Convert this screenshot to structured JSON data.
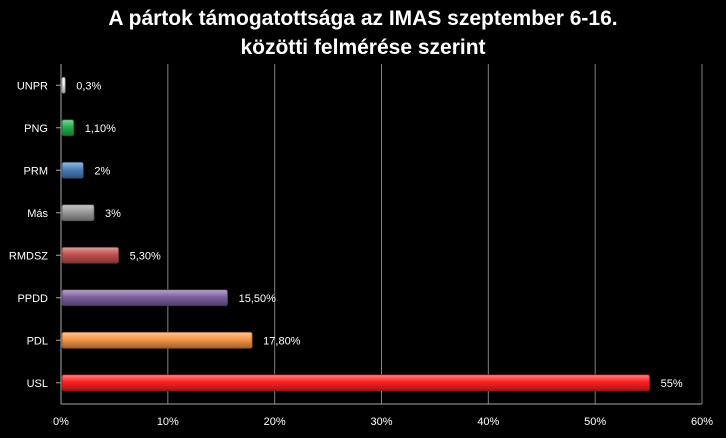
{
  "chart_data": {
    "type": "bar",
    "orientation": "horizontal",
    "title_lines": [
      "A pártok támogatottsága az IMAS szeptember 6-16.",
      "közötti felmérése szerint"
    ],
    "categories": [
      "UNPR",
      "PNG",
      "PRM",
      "Más",
      "RMDSZ",
      "PPDD",
      "PDL",
      "USL"
    ],
    "values": [
      0.3,
      1.1,
      2,
      3,
      5.3,
      15.5,
      17.8,
      55
    ],
    "value_labels": [
      "0,3%",
      "1,10%",
      "2%",
      "3%",
      "5,30%",
      "15,50%",
      "17,80%",
      "55%"
    ],
    "colors": [
      "#f2f2f2",
      "#22b14c",
      "#4a7ebb",
      "#9a9a9a",
      "#c0504d",
      "#7d60a0",
      "#f79646",
      "#ff2020"
    ],
    "x_ticks": [
      0,
      10,
      20,
      30,
      40,
      50,
      60
    ],
    "x_tick_labels": [
      "0%",
      "10%",
      "20%",
      "30%",
      "40%",
      "50%",
      "60%"
    ],
    "xlim": [
      0,
      60
    ],
    "xlabel": "",
    "ylabel": "",
    "grid": true,
    "legend": "none",
    "background": "#000000",
    "text_color": "#ffffff",
    "gridline_color": "#808080"
  }
}
